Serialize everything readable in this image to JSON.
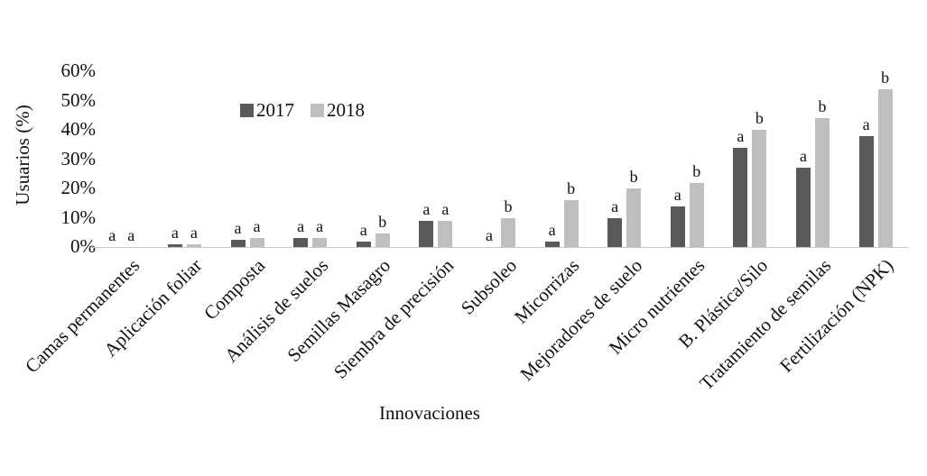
{
  "chart_data": {
    "type": "bar",
    "title": "",
    "xlabel": "Innovaciones",
    "ylabel": "Usuarios (%)",
    "unit": "percent",
    "ylim": [
      0,
      60
    ],
    "ytick_step": 10,
    "yticks": [
      "0%",
      "10%",
      "20%",
      "30%",
      "40%",
      "50%",
      "60%"
    ],
    "grid": "off",
    "legend_position": "top-center-left",
    "categories": [
      "Camas permanentes",
      "Aplicación foliar",
      "Composta",
      "Análisis de suelos",
      "Semillas Masagro",
      "Siembra de precisión",
      "Subsoleo",
      "Micorrizas",
      "Mejoradores de suelo",
      "Micro nutrientes",
      "B. Plástica/Silo",
      "Tratamiento de semilas",
      "Fertilización (NPK)"
    ],
    "series": [
      {
        "name": "2017",
        "color": "#595959",
        "values": [
          0,
          1,
          2.5,
          3,
          2,
          9,
          0,
          2,
          10,
          14,
          34,
          27,
          38
        ]
      },
      {
        "name": "2018",
        "color": "#bfbfbf",
        "values": [
          0,
          1,
          3,
          3,
          4.5,
          9,
          10,
          16,
          20,
          22,
          40,
          44,
          54
        ]
      }
    ],
    "sig_letters": [
      [
        "a",
        "a"
      ],
      [
        "a",
        "a"
      ],
      [
        "a",
        "a"
      ],
      [
        "a",
        "a"
      ],
      [
        "a",
        "b"
      ],
      [
        "a",
        "a"
      ],
      [
        "a",
        "b"
      ],
      [
        "a",
        "b"
      ],
      [
        "a",
        "b"
      ],
      [
        "a",
        "b"
      ],
      [
        "a",
        "b"
      ],
      [
        "a",
        "b"
      ],
      [
        "a",
        "b"
      ]
    ],
    "axis_line_color": "#c8c8c8",
    "text_color": "#111111"
  }
}
